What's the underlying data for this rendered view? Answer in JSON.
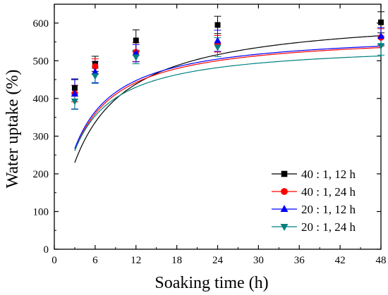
{
  "chart_data": {
    "type": "scatter",
    "xlabel": "Soaking time (h)",
    "ylabel": "Water uptake (%)",
    "xlim": [
      0,
      48
    ],
    "ylim": [
      0,
      650
    ],
    "xticks": [
      0,
      6,
      12,
      18,
      24,
      30,
      36,
      42,
      48
    ],
    "yticks": [
      0,
      100,
      200,
      300,
      400,
      500,
      600
    ],
    "grid": false,
    "legend_position": "lower-right",
    "x": [
      3,
      6,
      12,
      24,
      48
    ],
    "series": [
      {
        "name": "40 : 1, 12 h",
        "marker": "square",
        "color": "#000000",
        "values": [
          428,
          492,
          554,
          595,
          602
        ],
        "errors": [
          22,
          20,
          28,
          23,
          28
        ],
        "fit": [
          0,
          628,
          5.2
        ]
      },
      {
        "name": "40 : 1, 24 h",
        "marker": "circle",
        "color": "#ff0000",
        "values": [
          413,
          485,
          523,
          545,
          562
        ],
        "errors": [
          22,
          20,
          25,
          22,
          23
        ],
        "fit": [
          0,
          575,
          3.6
        ]
      },
      {
        "name": "20 : 1, 12 h",
        "marker": "triangle-up",
        "color": "#0000ff",
        "values": [
          412,
          470,
          520,
          553,
          565
        ],
        "errors": [
          40,
          28,
          23,
          28,
          23
        ],
        "fit": [
          0,
          578,
          3.5
        ]
      },
      {
        "name": "20 : 1, 24 h",
        "marker": "triangle-down",
        "color": "#008080",
        "values": [
          393,
          460,
          510,
          536,
          540
        ],
        "errors": [
          22,
          20,
          18,
          25,
          25
        ],
        "fit": [
          0,
          548,
          3.3
        ]
      }
    ]
  }
}
